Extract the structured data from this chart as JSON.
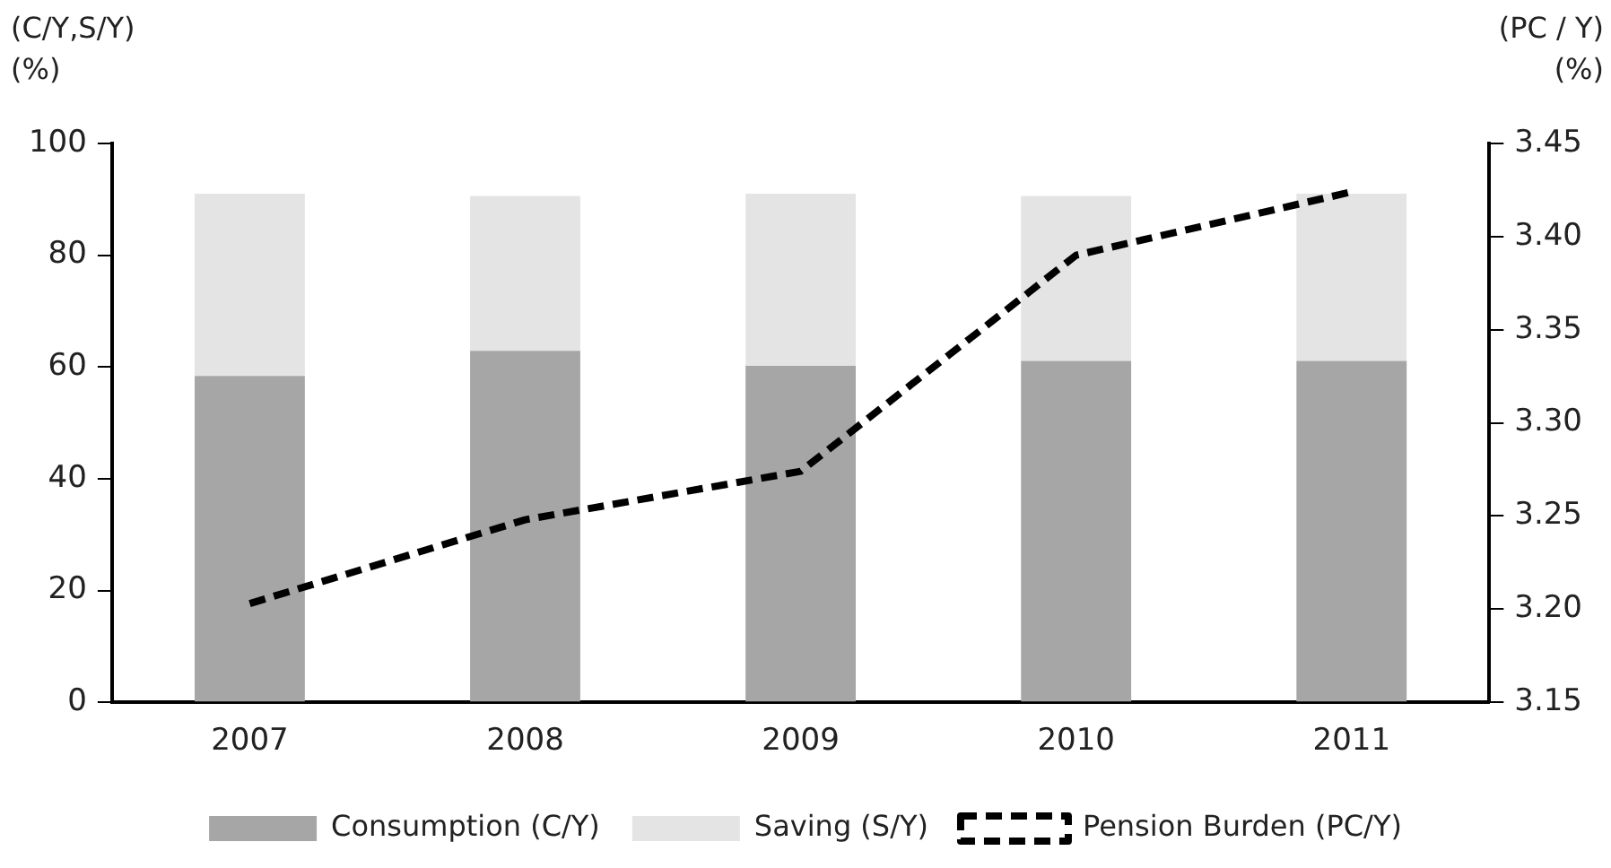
{
  "chart_data": {
    "type": "bar",
    "stacked": true,
    "ylabel": "(C/Y,S/Y)\n(%)",
    "y2label": "(PC / Y)\n(%)",
    "categories": [
      "2007",
      "2008",
      "2009",
      "2010",
      "2011"
    ],
    "series": [
      {
        "name": "Consumption (C/Y)",
        "color": "#a6a6a6",
        "values": [
          58.4,
          62.9,
          60.2,
          61.1,
          61.1
        ]
      },
      {
        "name": "Saving (S/Y)",
        "color": "#e4e4e4",
        "values": [
          32.6,
          27.7,
          30.8,
          29.5,
          29.9
        ]
      },
      {
        "name": "Pension Burden (PC/Y)",
        "type": "line",
        "axis": "y2",
        "color": "#000000",
        "line_style": "dashed",
        "marker": "none",
        "values": [
          3.203,
          3.248,
          3.274,
          3.39,
          3.424
        ]
      }
    ],
    "ylim": [
      0,
      100
    ],
    "yticks": [
      0,
      20,
      40,
      60,
      80,
      100
    ],
    "y2lim": [
      3.15,
      3.45
    ],
    "y2ticks": [
      {
        "value": 3.15,
        "label": "3.15"
      },
      {
        "value": 3.2,
        "label": "3.20"
      },
      {
        "value": 3.25,
        "label": "3.25"
      },
      {
        "value": 3.3,
        "label": "3.30"
      },
      {
        "value": 3.35,
        "label": "3.35"
      },
      {
        "value": 3.4,
        "label": "3.40"
      },
      {
        "value": 3.45,
        "label": "3.45"
      }
    ],
    "grid": false,
    "legend": "bottom"
  }
}
